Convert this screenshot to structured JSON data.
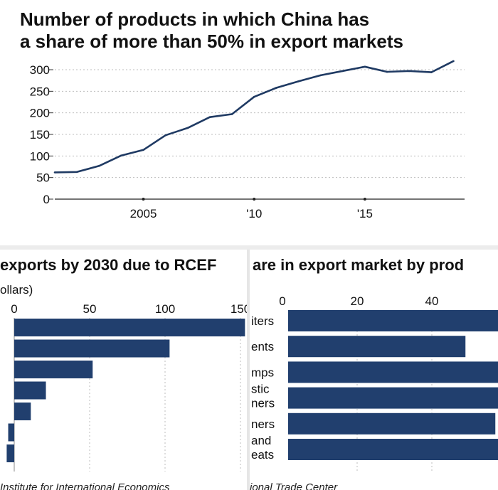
{
  "line_chart": {
    "title_line1": "Number of products in which China has",
    "title_line2": "a share of more than 50% in export markets"
  },
  "left_chart": {
    "title": "exports by 2030 due to RCEF",
    "unit": "ollars)",
    "source": "Institute for International Economics"
  },
  "right_chart": {
    "title": "are in export market by prod",
    "source": "ional Trade Center"
  },
  "colors": {
    "line": "#1f3a63",
    "bar": "#213f6e",
    "grid": "#bdbdbd"
  },
  "chart_data": [
    {
      "type": "line",
      "title": "Number of products in which China has a share of more than 50% in export markets",
      "x": [
        2001,
        2002,
        2003,
        2004,
        2005,
        2006,
        2007,
        2008,
        2009,
        2010,
        2011,
        2012,
        2013,
        2014,
        2015,
        2016,
        2017,
        2018,
        2019
      ],
      "y": [
        62,
        63,
        77,
        101,
        114,
        148,
        165,
        190,
        197,
        237,
        258,
        273,
        287,
        297,
        307,
        295,
        297,
        294,
        320
      ],
      "x_range": [
        2001,
        2019.5
      ],
      "ylim": [
        0,
        320
      ],
      "y_ticks": [
        0,
        50,
        100,
        150,
        200,
        250,
        300
      ],
      "x_ticks": [
        {
          "value": 2005,
          "label": "2005"
        },
        {
          "value": 2010,
          "label": "'10"
        },
        {
          "value": 2015,
          "label": "'15"
        }
      ],
      "grid": "horizontal dotted"
    },
    {
      "type": "bar",
      "orientation": "horizontal",
      "title": "exports by 2030 due to RCEF",
      "ylabel": "ollars)",
      "values": [
        153,
        103,
        52,
        21,
        11,
        -4,
        -5
      ],
      "x_range": [
        -10,
        160
      ],
      "x_ticks": [
        0,
        50,
        100,
        150
      ]
    },
    {
      "type": "bar",
      "orientation": "horizontal",
      "title": "are in export market by prod",
      "categories": [
        "iters",
        "ents",
        "mps",
        "stic\nners",
        "ners",
        "and\neats"
      ],
      "values": [
        60,
        49,
        61,
        62,
        57,
        60
      ],
      "x_range": [
        -2,
        58
      ],
      "x_ticks": [
        0,
        20,
        40
      ]
    }
  ]
}
